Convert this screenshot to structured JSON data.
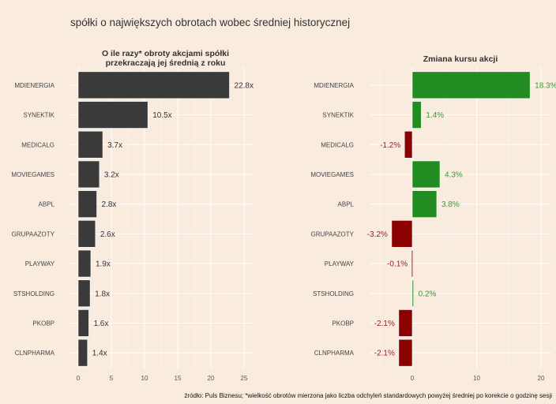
{
  "title": "spółki o największych obrotach wobec średniej historycznej",
  "caption": "źródło: Puls Biznesu; *wielkość obrotów mierzona jako liczba odchyleń standardowych powyżej średniej po korekcie o godzinę sesji",
  "colors": {
    "background": "#faebdf",
    "bar_left": "#3a3a3a",
    "positive": "#228b22",
    "negative": "#8b0000",
    "positive_label": "#3a9a3a",
    "negative_label": "#9b1b1b"
  },
  "chart_data": [
    {
      "type": "bar",
      "orientation": "horizontal",
      "title": "O ile razy* obroty akcjami spółki\nprzekraczają jej średnią z roku",
      "title_lines": [
        "O ile razy* obroty akcjami spółki",
        "przekraczają jej średnią z roku"
      ],
      "categories": [
        "MDIENERGIA",
        "SYNEKTIK",
        "MEDICALG",
        "MOVIEGAMES",
        "ABPL",
        "GRUPAAZOTY",
        "PLAYWAY",
        "STSHOLDING",
        "PKOBP",
        "CLNPHARMA"
      ],
      "values": [
        22.8,
        10.5,
        3.7,
        3.2,
        2.8,
        2.6,
        1.9,
        1.8,
        1.6,
        1.4
      ],
      "labels": [
        "22.8x",
        "10.5x",
        "3.7x",
        "3.2x",
        "2.8x",
        "2.6x",
        "1.9x",
        "1.8x",
        "1.6x",
        "1.4x"
      ],
      "xlim": [
        0,
        25
      ],
      "xticks": [
        0,
        5,
        10,
        15,
        20,
        25
      ],
      "xlabel": "",
      "ylabel": "",
      "grid": true,
      "legend": "none"
    },
    {
      "type": "bar",
      "orientation": "horizontal",
      "title": "Zmiana kursu akcji",
      "categories": [
        "MDIENERGIA",
        "SYNEKTIK",
        "MEDICALG",
        "MOVIEGAMES",
        "ABPL",
        "GRUPAAZOTY",
        "PLAYWAY",
        "STSHOLDING",
        "PKOBP",
        "CLNPHARMA"
      ],
      "values": [
        18.3,
        1.4,
        -1.2,
        4.3,
        3.8,
        -3.2,
        -0.1,
        0.2,
        -2.1,
        -2.1
      ],
      "labels": [
        "18.3%",
        "1.4%",
        "-1.2%",
        "4.3%",
        "3.8%",
        "-3.2%",
        "-0.1%",
        "0.2%",
        "-2.1%",
        "-2.1%"
      ],
      "xlim": [
        -6.6,
        21.5
      ],
      "xticks": [
        0,
        10,
        20
      ],
      "xlabel": "",
      "ylabel": "",
      "grid": true,
      "legend": "none"
    }
  ]
}
